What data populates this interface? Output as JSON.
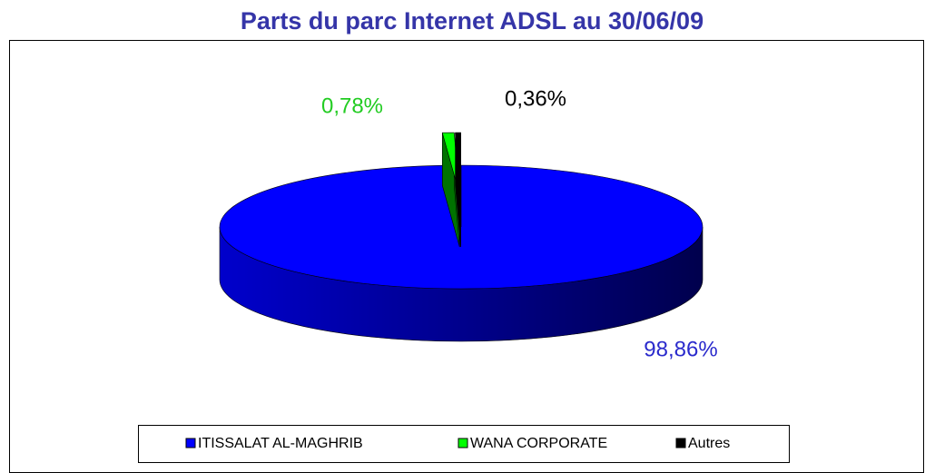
{
  "chart_data": {
    "type": "pie",
    "title": "Parts du parc Internet ADSL au 30/06/09",
    "categories": [
      "ITISSALAT AL-MAGHRIB",
      "WANA CORPORATE",
      "Autres"
    ],
    "values": [
      98.86,
      0.78,
      0.36
    ],
    "value_labels": [
      "98,86%",
      "0,78%",
      "0,36%"
    ],
    "colors": [
      "#0000ff",
      "#00ff00",
      "#000000"
    ],
    "legend": "bottom"
  }
}
